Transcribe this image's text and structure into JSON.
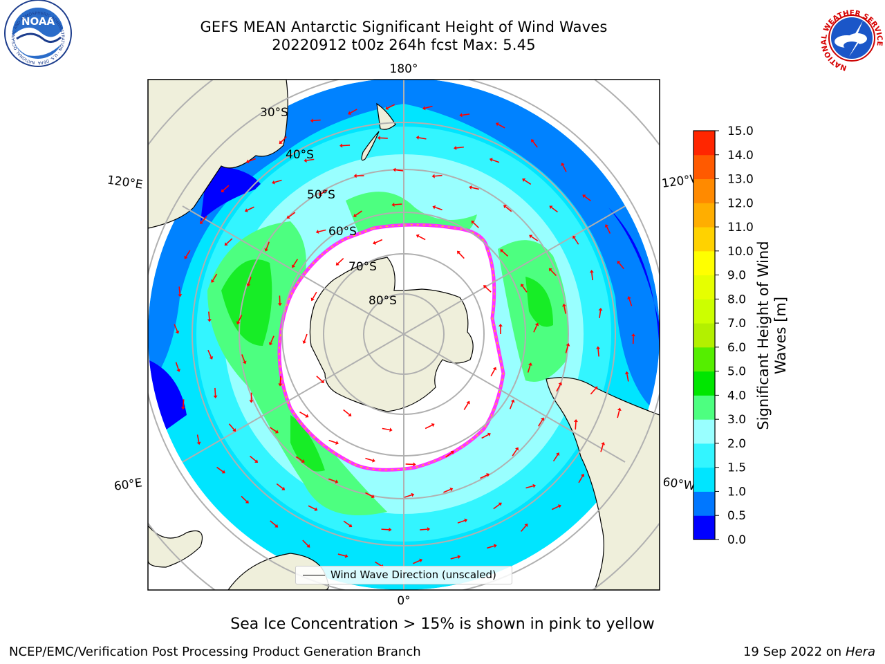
{
  "title": {
    "line1": "GEFS MEAN Antarctic Significant Height of Wind Waves",
    "line2": "20220912 t00z 264h fcst   Max: 5.45"
  },
  "logos": {
    "left": {
      "icon": "noaa-logo",
      "text": "NOAA",
      "ring_text": "NATIONAL OCEANIC AND ATMOSPHERIC ADMINISTRATION · U.S. DEPARTMENT OF COMMERCE"
    },
    "right": {
      "icon": "nws-logo",
      "ring_text": "NATIONAL WEATHER SERVICE"
    }
  },
  "map": {
    "projection": "south polar stereographic",
    "longitude_labels": {
      "top": "180°",
      "bottom": "0°",
      "upper_left": "120°E",
      "lower_left": "60°E",
      "upper_right": "120°W",
      "lower_right": "60°W"
    },
    "latitude_labels": [
      "30°S",
      "40°S",
      "50°S",
      "60°S",
      "70°S",
      "80°S"
    ],
    "colors": {
      "land": "#efefdb",
      "ice_free_no_data": "#ffffff",
      "arrow": "#ff0000",
      "sea_ice_edge": "#ff33ff",
      "graticule": "#b0b0b0"
    },
    "legend": {
      "label": "Wind Wave Direction (unscaled)"
    }
  },
  "colorbar": {
    "label": "Significant Height of Wind Waves [m]",
    "ticks": [
      "0.0",
      "0.5",
      "1.0",
      "1.5",
      "2.0",
      "3.0",
      "4.0",
      "5.0",
      "6.0",
      "7.0",
      "8.0",
      "9.0",
      "10.0",
      "11.0",
      "12.0",
      "13.0",
      "14.0",
      "15.0"
    ],
    "colors": [
      "#0000ff",
      "#0077ff",
      "#00e5ff",
      "#33f5ff",
      "#99ffff",
      "#4dff80",
      "#00e600",
      "#55ee00",
      "#b3f000",
      "#ccff00",
      "#e6ff00",
      "#ffff00",
      "#ffd200",
      "#ffae00",
      "#ff8a00",
      "#ff5a00",
      "#ff2600"
    ]
  },
  "caption": "Sea Ice Concentration > 15% is shown in pink to yellow",
  "footer": {
    "left": "NCEP/EMC/Verification Post Processing Product Generation Branch",
    "right_date": "19 Sep 2022 on",
    "right_machine": "Hera"
  }
}
